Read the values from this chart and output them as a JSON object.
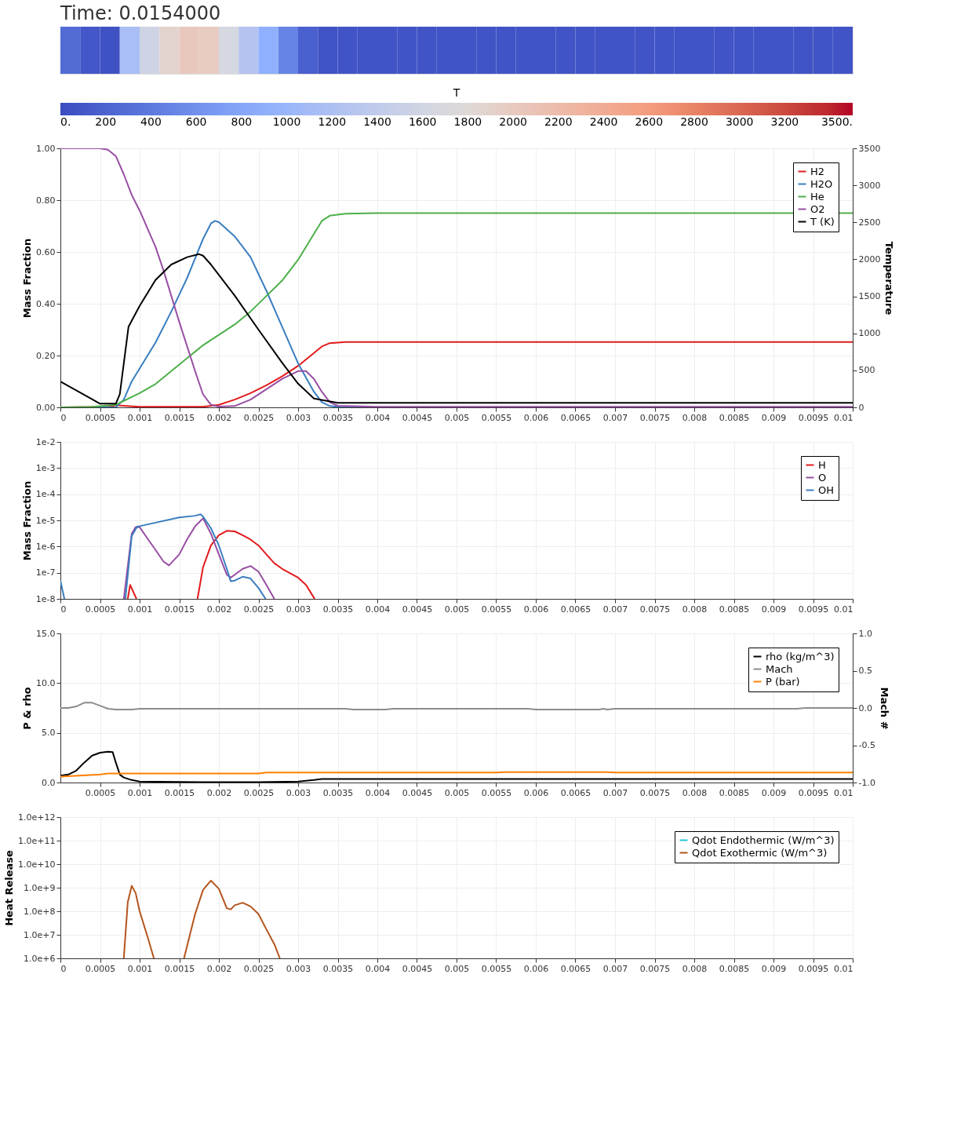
{
  "chart_data": [
    {
      "type": "heatmap",
      "title": "Time: 0.0154000",
      "clabel": "T",
      "clim": [
        0,
        3500
      ],
      "cticks": [
        {
          "value": 0,
          "label": "0."
        },
        200,
        400,
        600,
        800,
        1000,
        1200,
        1400,
        1600,
        1800,
        2000,
        2200,
        2400,
        2600,
        2800,
        3000,
        3200,
        {
          "value": 3500,
          "label": "3500."
        }
      ],
      "categories": [
        null,
        null,
        null,
        null,
        null,
        null,
        null,
        null,
        null,
        null,
        null,
        null,
        null,
        null,
        null,
        null,
        null,
        null,
        null,
        null,
        null,
        null,
        null,
        null,
        null,
        null,
        null,
        null,
        null,
        null,
        null,
        null,
        null,
        null,
        null,
        null,
        null,
        null,
        null,
        null
      ],
      "y_categories": [
        null
      ],
      "cells": [
        [
          270,
          100,
          53,
          1150,
          1580,
          1890,
          2030,
          1990,
          1650,
          1260,
          880,
          490,
          180,
          60,
          70,
          70,
          70,
          70,
          70,
          70,
          70,
          70,
          70,
          70,
          70,
          70,
          70,
          70,
          70,
          70,
          70,
          70,
          70,
          70,
          70,
          70,
          70,
          70,
          70,
          70
        ]
      ]
    },
    {
      "type": "line",
      "ylabel": "Mass Fraction",
      "y2label": "Temperature",
      "grid": true,
      "legend": "top right",
      "xlim": [
        0,
        0.01
      ],
      "xticks": [
        0,
        0.0005,
        0.001,
        0.0015,
        0.002,
        0.0025,
        0.003,
        0.0035,
        0.004,
        0.0045,
        0.005,
        0.0055,
        0.006,
        0.0065,
        0.007,
        0.0075,
        0.008,
        0.0085,
        0.009,
        0.0095,
        0.01
      ],
      "ylim": [
        0,
        1
      ],
      "yticks": [
        {
          "value": 0,
          "label": "0.00"
        },
        {
          "value": 0.2,
          "label": "0.20"
        },
        {
          "value": 0.4,
          "label": "0.40"
        },
        {
          "value": 0.6,
          "label": "0.60"
        },
        {
          "value": 0.8,
          "label": "0.80"
        },
        {
          "value": 1,
          "label": "1.00"
        }
      ],
      "y2lim": [
        0,
        3500
      ],
      "y2ticks": [
        0,
        500,
        1000,
        1500,
        2000,
        2500,
        3000,
        3500
      ],
      "series": [
        {
          "name": "H2",
          "color": "#e31a1c",
          "x": [
            0,
            0.0006,
            0.0007,
            0.0008,
            0.001,
            0.0018,
            0.002,
            0.0022,
            0.0024,
            0.0026,
            0.0028,
            0.003,
            0.0032,
            0.0033,
            0.0034,
            0.0036,
            0.01
          ],
          "values": [
            0,
            0.002,
            0.008,
            0.006,
            0.002,
            0.002,
            0.01,
            0.03,
            0.055,
            0.085,
            0.12,
            0.16,
            0.21,
            0.235,
            0.248,
            0.252,
            0.252
          ]
        },
        {
          "name": "H2O",
          "color": "#3a7ebf",
          "x": [
            0,
            0.0007,
            0.0008,
            0.0009,
            0.001,
            0.0012,
            0.0014,
            0.0016,
            0.0018,
            0.0019,
            0.00195,
            0.002,
            0.0022,
            0.0024,
            0.0026,
            0.0028,
            0.003,
            0.0032,
            0.0033,
            0.0034,
            0.0035,
            0.004
          ],
          "values": [
            0,
            0,
            0.03,
            0.1,
            0.15,
            0.25,
            0.37,
            0.5,
            0.65,
            0.71,
            0.72,
            0.715,
            0.66,
            0.58,
            0.45,
            0.31,
            0.17,
            0.06,
            0.02,
            0.005,
            0.002,
            0
          ]
        },
        {
          "name": "He",
          "color": "#4daf4a",
          "x": [
            0,
            0.0004,
            0.0007,
            0.0008,
            0.001,
            0.0012,
            0.0014,
            0.0016,
            0.0018,
            0.002,
            0.0022,
            0.0024,
            0.0026,
            0.0028,
            0.003,
            0.0032,
            0.0033,
            0.0034,
            0.0036,
            0.004,
            0.01
          ],
          "values": [
            0,
            0.002,
            0.01,
            0.025,
            0.055,
            0.09,
            0.14,
            0.19,
            0.24,
            0.28,
            0.32,
            0.37,
            0.43,
            0.49,
            0.57,
            0.67,
            0.72,
            0.74,
            0.748,
            0.75,
            0.75
          ]
        },
        {
          "name": "O2",
          "color": "#984ea3",
          "x": [
            0,
            0.0005,
            0.0006,
            0.0007,
            0.0008,
            0.0009,
            0.001,
            0.0012,
            0.0013,
            0.0015,
            0.0017,
            0.0018,
            0.0019,
            0.002,
            0.0022,
            0.0024,
            0.0026,
            0.0028,
            0.003,
            0.0031,
            0.0032,
            0.0033,
            0.0034,
            0.0035,
            0.004,
            0.01
          ],
          "values": [
            1,
            1,
            0.995,
            0.97,
            0.9,
            0.82,
            0.76,
            0.62,
            0.53,
            0.33,
            0.14,
            0.05,
            0.01,
            0.003,
            0.005,
            0.03,
            0.07,
            0.11,
            0.14,
            0.14,
            0.11,
            0.06,
            0.02,
            0.006,
            0.002,
            0.002
          ]
        },
        {
          "name": "T (K)",
          "color": "#000000",
          "axis": "y2",
          "x": [
            0,
            0.0005,
            0.0007,
            0.00075,
            0.00086,
            0.001,
            0.0012,
            0.0014,
            0.0016,
            0.00175,
            0.0018,
            0.0019,
            0.0022,
            0.0025,
            0.0028,
            0.003,
            0.0032,
            0.0035,
            0.01
          ],
          "values": [
            350,
            50,
            50,
            180,
            1090,
            1370,
            1720,
            1930,
            2030,
            2070,
            2050,
            1930,
            1510,
            1050,
            600,
            320,
            120,
            60,
            60
          ]
        }
      ]
    },
    {
      "type": "line",
      "ylabel": "Mass Fraction",
      "grid": true,
      "legend": "top right",
      "log": true,
      "xlim": [
        0,
        0.01
      ],
      "xticks": [
        0,
        0.0005,
        0.001,
        0.0015,
        0.002,
        0.0025,
        0.003,
        0.0035,
        0.004,
        0.0045,
        0.005,
        0.0055,
        0.006,
        0.0065,
        0.007,
        0.0075,
        0.008,
        0.0085,
        0.009,
        0.0095,
        0.01
      ],
      "ylim": [
        1e-08,
        0.01
      ],
      "yticks": [
        {
          "value": 1e-08,
          "label": "1e-8"
        },
        {
          "value": 1e-07,
          "label": "1e-7"
        },
        {
          "value": 1e-06,
          "label": "1e-6"
        },
        {
          "value": 1e-05,
          "label": "1e-5"
        },
        {
          "value": 0.0001,
          "label": "1e-4"
        },
        {
          "value": 0.001,
          "label": "1e-3"
        },
        {
          "value": 0.01,
          "label": "1e-2"
        }
      ],
      "series": [
        {
          "name": "H",
          "color": "#e31a1c",
          "x": [
            0.00085,
            0.00088,
            0.00096,
            0.0013,
            0.00173,
            0.0018,
            0.0019,
            0.002,
            0.0021,
            0.0022,
            0.0023,
            0.0024,
            0.0025,
            0.0026,
            0.0027,
            0.0028,
            0.0029,
            0.003,
            0.0031,
            0.0032,
            0.00321
          ],
          "values": [
            1e-08,
            3.4e-08,
            1e-08,
            null,
            1e-08,
            1.6e-07,
            1.1e-06,
            2.7e-06,
            4e-06,
            3.8e-06,
            2.7e-06,
            1.85e-06,
            1.1e-06,
            5e-07,
            2.3e-07,
            1.4e-07,
            9.6e-08,
            6.5e-08,
            3.4e-08,
            1.1e-08,
            1e-08
          ]
        },
        {
          "name": "O",
          "color": "#984ea3",
          "x": [
            0.0008,
            0.0009,
            0.00095,
            0.001,
            0.0011,
            0.0012,
            0.0013,
            0.00137,
            0.0015,
            0.0016,
            0.0017,
            0.0018,
            0.0019,
            0.002,
            0.0021,
            0.00215,
            0.0022,
            0.0023,
            0.0024,
            0.0025,
            0.0026,
            0.0027
          ],
          "values": [
            1e-08,
            3.1e-06,
            5.6e-06,
            5.5e-06,
            2e-06,
            7.5e-07,
            2.7e-07,
            1.9e-07,
            5e-07,
            1.9e-06,
            5.9e-06,
            1.2e-05,
            3.1e-06,
            5e-07,
            8.4e-08,
            6.5e-08,
            8.4e-08,
            1.4e-07,
            1.8e-07,
            1.1e-07,
            3.4e-08,
            1e-08
          ]
        },
        {
          "name": "OH",
          "color": "#3a7ebf",
          "x": [
            0,
            5e-05,
            0.0004,
            0.00082,
            0.0009,
            0.00097,
            0.001,
            0.0015,
            0.0017,
            0.00177,
            0.0018,
            0.0019,
            0.002,
            0.0021,
            0.00215,
            0.0022,
            0.0023,
            0.0024,
            0.0025,
            0.00259
          ],
          "values": [
            5e-08,
            1e-08,
            null,
            1e-08,
            2.5e-06,
            5.9e-06,
            6e-06,
            1.3e-05,
            1.5e-05,
            1.7e-05,
            1.4e-05,
            5e-06,
            1.1e-06,
            1.4e-07,
            4.7e-08,
            5e-08,
            7e-08,
            6e-08,
            2.6e-08,
            1e-08
          ]
        }
      ]
    },
    {
      "type": "line",
      "ylabel": "P & rho",
      "y2label": "Mach #",
      "grid": true,
      "legend": "top right",
      "xlim": [
        0,
        0.01
      ],
      "xticks": [
        0.0005,
        0.001,
        0.0015,
        0.002,
        0.0025,
        0.003,
        0.0035,
        0.004,
        0.0045,
        0.005,
        0.0055,
        0.006,
        0.0065,
        0.007,
        0.0075,
        0.008,
        0.0085,
        0.009,
        0.0095,
        0.01
      ],
      "ylim": [
        0,
        15
      ],
      "yticks": [
        {
          "value": 0,
          "label": "0.0"
        },
        {
          "value": 5,
          "label": "5.0"
        },
        {
          "value": 10,
          "label": "10.0"
        },
        {
          "value": 15,
          "label": "15.0"
        }
      ],
      "y2lim": [
        -1,
        1
      ],
      "y2ticks": [
        {
          "value": -1,
          "label": "-1.0"
        },
        -0.5,
        {
          "value": 0,
          "label": "0.0"
        },
        0.5,
        {
          "value": 1,
          "label": "1.0"
        }
      ],
      "series": [
        {
          "name": "rho (kg/m^3)",
          "color": "#000000",
          "x": [
            0,
            0.0001,
            0.0002,
            0.0003,
            0.0004,
            0.0005,
            0.0006,
            0.00066,
            0.0007,
            0.00075,
            0.0008,
            0.0009,
            0.001,
            0.0015,
            0.0025,
            0.003,
            0.0032,
            0.0033,
            0.01
          ],
          "values": [
            0.7,
            0.8,
            1.2,
            2.0,
            2.7,
            3.0,
            3.1,
            3.05,
            2.0,
            0.8,
            0.5,
            0.25,
            0.1,
            0.05,
            0.03,
            0.1,
            0.25,
            0.35,
            0.35
          ]
        },
        {
          "name": "Mach",
          "color": "#8c8c8c",
          "axis": "y2",
          "x": [
            0,
            0.0001,
            0.0002,
            0.0003,
            0.0004,
            0.0005,
            0.0006,
            0.0007,
            0.0009,
            0.001,
            0.0036,
            0.0037,
            0.0041,
            0.0042,
            0.0059,
            0.006,
            0.0068,
            0.00685,
            0.0069,
            0.007,
            0.0093,
            0.0094,
            0.01
          ],
          "values": [
            0,
            0,
            0.02,
            0.07,
            0.07,
            0.03,
            -0.01,
            -0.02,
            -0.02,
            -0.01,
            -0.01,
            -0.02,
            -0.02,
            -0.01,
            -0.01,
            -0.02,
            -0.02,
            -0.01,
            -0.02,
            -0.01,
            -0.01,
            0,
            0
          ]
        },
        {
          "name": "P (bar)",
          "color": "#ff7f00",
          "x": [
            0,
            0.0005,
            0.0006,
            0.0025,
            0.0026,
            0.0055,
            0.0056,
            0.0069,
            0.007,
            0.01
          ],
          "values": [
            0.6,
            0.8,
            0.9,
            0.9,
            1.0,
            1.0,
            1.05,
            1.05,
            1.0,
            1.0
          ]
        }
      ]
    },
    {
      "type": "line",
      "ylabel": "Heat Release",
      "grid": true,
      "legend": "top right",
      "log": true,
      "xlim": [
        0,
        0.01
      ],
      "xticks": [
        0,
        0.0005,
        0.001,
        0.0015,
        0.002,
        0.0025,
        0.003,
        0.0035,
        0.004,
        0.0045,
        0.005,
        0.0055,
        0.006,
        0.0065,
        0.007,
        0.0075,
        0.008,
        0.0085,
        0.009,
        0.0095,
        0.01
      ],
      "ylim": [
        1000000,
        1000000000000
      ],
      "yticks": [
        {
          "value": 1000000,
          "label": "1.0e+6"
        },
        {
          "value": 10000000,
          "label": "1.0e+7"
        },
        {
          "value": 100000000,
          "label": "1.0e+8"
        },
        {
          "value": 1000000000,
          "label": "1.0e+9"
        },
        {
          "value": 10000000000,
          "label": "1.0e+10"
        },
        {
          "value": 100000000000,
          "label": "1.0e+11"
        },
        {
          "value": 1000000000000,
          "label": "1.0e+12"
        }
      ],
      "series": [
        {
          "name": "Qdot Endothermic (W/m^3)",
          "color": "#1fc4d8"
        },
        {
          "name": "Qdot Exothermic (W/m^3)",
          "color": "#b5541d",
          "x": [
            0.0008,
            0.00085,
            0.0009,
            0.00095,
            0.001,
            0.0011,
            0.00118,
            0.0014,
            0.00156,
            0.0017,
            0.0018,
            0.0019,
            0.002,
            0.0021,
            0.00215,
            0.0022,
            0.0023,
            0.0024,
            0.0025,
            0.0026,
            0.0027,
            0.00277
          ],
          "values": [
            1000000,
            240000000,
            1200000000,
            590000000,
            100000000,
            8300000,
            1000000,
            null,
            1000000,
            76000000,
            800000000,
            2000000000,
            900000000,
            135000000,
            120000000,
            180000000,
            230000000,
            160000000,
            76000000,
            17000000,
            4000000,
            1000000
          ]
        }
      ]
    }
  ]
}
